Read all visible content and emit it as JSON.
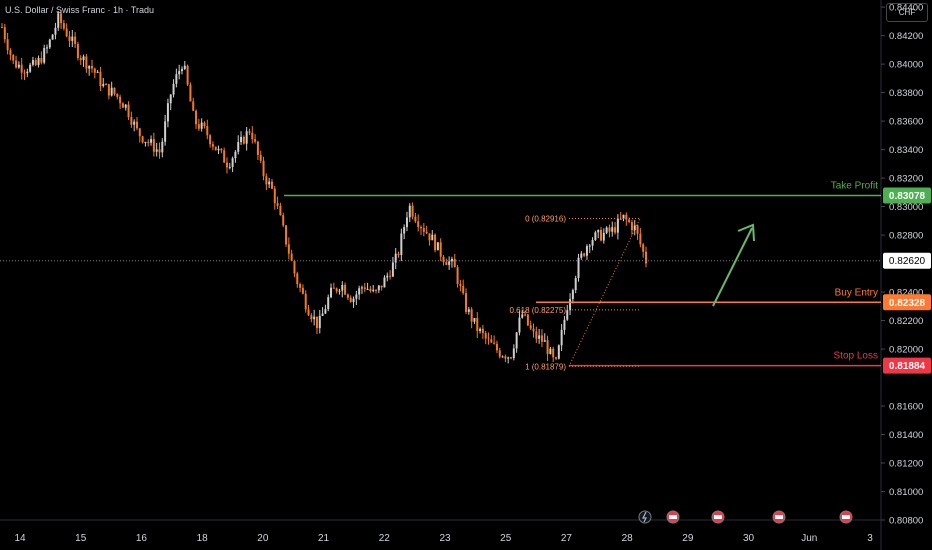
{
  "header": {
    "title": "U.S. Dollar / Swiss Franc · 1h · Tradu",
    "currency": "CHF"
  },
  "chart_data": {
    "type": "candlestick",
    "ylim": [
      0.808,
      0.8445
    ],
    "y_ticks": [
      "0.84400",
      "0.84200",
      "0.84000",
      "0.83800",
      "0.83600",
      "0.83400",
      "0.83200",
      "0.83000",
      "0.82800",
      "0.82400",
      "0.82200",
      "0.82000",
      "0.81600",
      "0.81400",
      "0.81200",
      "0.81000",
      "0.80800"
    ],
    "x_ticks": [
      "14",
      "15",
      "16",
      "18",
      "20",
      "21",
      "22",
      "23",
      "25",
      "27",
      "28",
      "29",
      "30",
      "Jun",
      "3"
    ],
    "current_price": {
      "value": 0.8262,
      "label": "0.82620",
      "color": "#ffffff"
    },
    "levels": [
      {
        "name": "Take Profit",
        "value": 0.83078,
        "label": "0.83078",
        "color": "#4caf50"
      },
      {
        "name": "Buy Entry",
        "value": 0.82328,
        "label": "0.82328",
        "color": "#ff7a30"
      },
      {
        "name": "Stop Loss",
        "value": 0.81884,
        "label": "0.81884",
        "color": "#f23645"
      }
    ],
    "fibonacci": [
      {
        "label": "0 (0.82916)",
        "value": 0.82916
      },
      {
        "label": "0.618 (0.82275)",
        "value": 0.82275
      },
      {
        "label": "1 (0.81879)",
        "value": 0.81879
      }
    ],
    "close_path": [
      [
        "14",
        0.8426
      ],
      [
        "14",
        0.8401
      ],
      [
        "14",
        0.8397
      ],
      [
        "14",
        0.8399
      ],
      [
        "15",
        0.8411
      ],
      [
        "15",
        0.8432
      ],
      [
        "15",
        0.8418
      ],
      [
        "15",
        0.8405
      ],
      [
        "15",
        0.8397
      ],
      [
        "16",
        0.8384
      ],
      [
        "16",
        0.8379
      ],
      [
        "16",
        0.837
      ],
      [
        "16",
        0.8352
      ],
      [
        "16",
        0.8345
      ],
      [
        "16",
        0.8338
      ],
      [
        "18",
        0.8382
      ],
      [
        "18",
        0.8402
      ],
      [
        "18",
        0.836
      ],
      [
        "18",
        0.8353
      ],
      [
        "20",
        0.834
      ],
      [
        "20",
        0.833
      ],
      [
        "20",
        0.8343
      ],
      [
        "20",
        0.8355
      ],
      [
        "20",
        0.8325
      ],
      [
        "20",
        0.831
      ],
      [
        "21",
        0.828
      ],
      [
        "21",
        0.825
      ],
      [
        "21",
        0.823
      ],
      [
        "21",
        0.8216
      ],
      [
        "21",
        0.8238
      ],
      [
        "22",
        0.8246
      ],
      [
        "22",
        0.8235
      ],
      [
        "22",
        0.8245
      ],
      [
        "22",
        0.8238
      ],
      [
        "22",
        0.825
      ],
      [
        "22",
        0.8265
      ],
      [
        "23",
        0.8301
      ],
      [
        "23",
        0.8288
      ],
      [
        "23",
        0.8278
      ],
      [
        "23",
        0.8265
      ],
      [
        "23",
        0.8258
      ],
      [
        "25",
        0.823
      ],
      [
        "25",
        0.8215
      ],
      [
        "25",
        0.8205
      ],
      [
        "25",
        0.8198
      ],
      [
        "25",
        0.8195
      ],
      [
        "27",
        0.8225
      ],
      [
        "27",
        0.821
      ],
      [
        "27",
        0.8205
      ],
      [
        "27",
        0.8188
      ],
      [
        "27",
        0.823
      ],
      [
        "27",
        0.826
      ],
      [
        "28",
        0.8277
      ],
      [
        "28",
        0.828
      ],
      [
        "28",
        0.8283
      ],
      [
        "28",
        0.8292
      ],
      [
        "28",
        0.8285
      ],
      [
        "28",
        0.8262
      ]
    ],
    "icons": [
      "lightning-icon",
      "us-flag-icon",
      "us-flag-icon",
      "us-flag-icon",
      "us-flag-icon",
      "us-flag-icon"
    ]
  }
}
